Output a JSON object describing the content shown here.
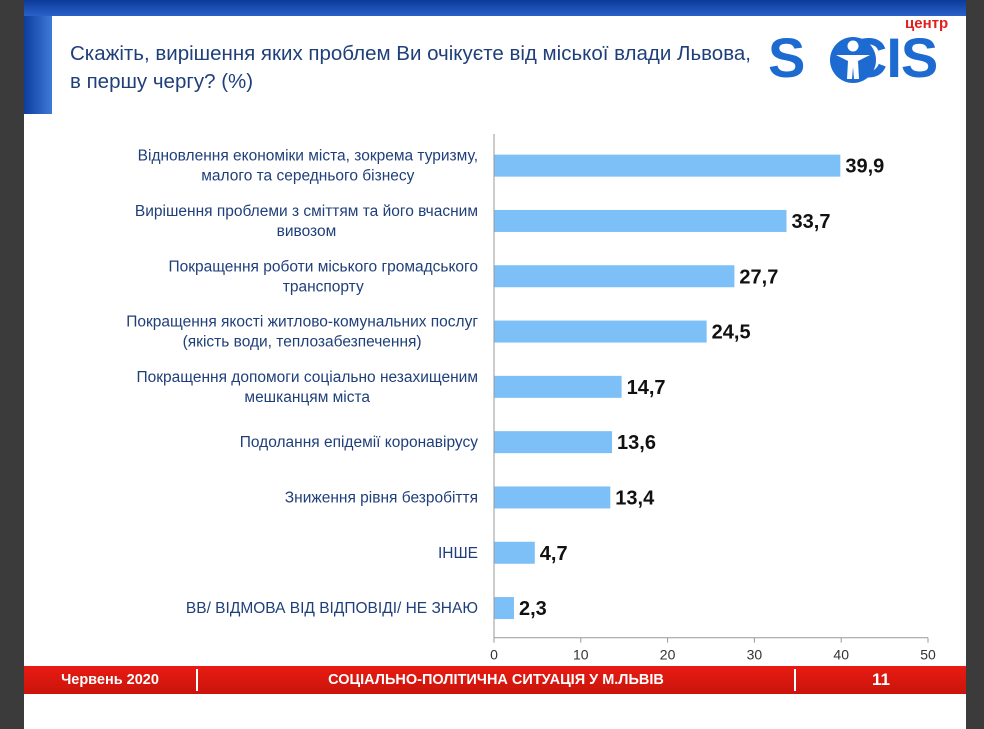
{
  "header": {
    "title": "Скажіть, вирішення яких проблем Ви очікуєте від міської влади Львова, в першу чергу? (%)",
    "logo_top": "центр",
    "logo_word": "SOCIS"
  },
  "chart_data": {
    "type": "bar",
    "orientation": "horizontal",
    "title": "Скажіть, вирішення яких проблем Ви очікуєте від міської влади Львова, в першу чергу? (%)",
    "categories": [
      [
        "Відновлення економіки міста, зокрема туризму,",
        "малого та середнього бізнесу"
      ],
      [
        "Вирішення проблеми з сміттям та його вчасним",
        "вивозом"
      ],
      [
        "Покращення роботи міського громадського",
        "транспорту"
      ],
      [
        "Покращення якості житлово-комунальних послуг",
        "(якість води, теплозабезпечення)"
      ],
      [
        "Покращення допомоги соціально незахищеним",
        "мешканцям міста"
      ],
      [
        "Подолання епідемії коронавірусу"
      ],
      [
        "Зниження рівня безробіття"
      ],
      [
        "ІНШЕ"
      ],
      [
        "ВВ/ ВІДМОВА ВІД ВІДПОВІДІ/ НЕ ЗНАЮ"
      ]
    ],
    "values": [
      39.9,
      33.7,
      27.7,
      24.5,
      14.7,
      13.6,
      13.4,
      4.7,
      2.3
    ],
    "value_labels": [
      "39,9",
      "33,7",
      "27,7",
      "24,5",
      "14,7",
      "13,6",
      "13,4",
      "4,7",
      "2,3"
    ],
    "xlim": [
      0,
      50
    ],
    "xticks": [
      0,
      10,
      20,
      30,
      40,
      50
    ],
    "bar_color": "#7cc0f7",
    "grid": false,
    "legend": "none"
  },
  "footer": {
    "date": "Червень 2020",
    "subject": "СОЦІАЛЬНО-ПОЛІТИЧНА СИТУАЦІЯ У М.ЛЬВІВ",
    "page": "11"
  },
  "colors": {
    "accent_blue": "#1d6bd0",
    "footer_red": "#e81b12",
    "title_text": "#1f3f7a"
  }
}
